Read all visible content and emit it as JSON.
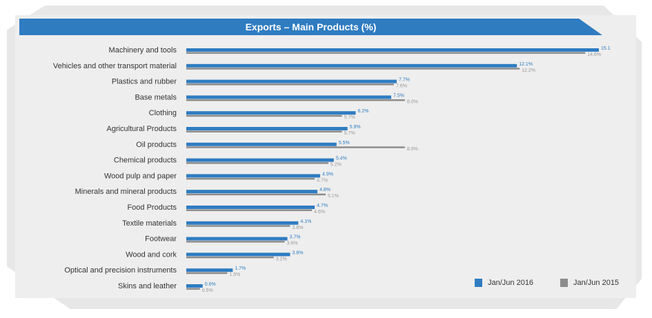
{
  "chart_data": {
    "type": "bar",
    "orientation": "horizontal",
    "title": "Exports – Main Products (%)",
    "categories": [
      "Machinery and tools",
      "Vehicles and other transport material",
      "Plastics and rubber",
      "Base metals",
      "Clothing",
      "Agricultural Products",
      "Oil products",
      "Chemical products",
      "Wood pulp and paper",
      "Minerals and mineral products",
      "Food Products",
      "Textile materials",
      "Footwear",
      "Wood and cork",
      "Optical and precision instruments",
      "Skins and leather"
    ],
    "series": [
      {
        "name": "Jan/Jun 2016",
        "color": "#2f7cc1",
        "values": [
          15.1,
          12.1,
          7.7,
          7.5,
          6.2,
          5.9,
          5.5,
          5.4,
          4.9,
          4.8,
          4.7,
          4.1,
          3.7,
          3.8,
          1.7,
          0.6
        ],
        "labels": [
          "15.1",
          "12.1%",
          "7.7%",
          "7.5%",
          "6.2%",
          "5.9%",
          "5.5%",
          "5.4%",
          "4.9%",
          "4.8%",
          "4.7%",
          "4.1%",
          "3.7%",
          "3.8%",
          "1.7%",
          "0.6%"
        ]
      },
      {
        "name": "Jan/Jun 2015",
        "color": "#8c8c8c",
        "values": [
          14.6,
          12.2,
          7.6,
          8.0,
          5.7,
          5.7,
          8.0,
          5.2,
          4.7,
          5.1,
          4.6,
          3.8,
          3.6,
          3.2,
          1.5,
          0.5
        ],
        "labels": [
          "14.6%",
          "12.2%",
          "7.6%",
          "8.0%",
          "5.7%",
          "5.7%",
          "8.0%",
          "5.2%",
          "4.7%",
          "5.1%",
          "4.6%",
          "3.8%",
          "3.6%",
          "3.2%",
          "1.5%",
          "0.5%"
        ]
      }
    ],
    "xlim": [
      0,
      15.1
    ],
    "grid": false,
    "legend_position": "bottom-right"
  }
}
